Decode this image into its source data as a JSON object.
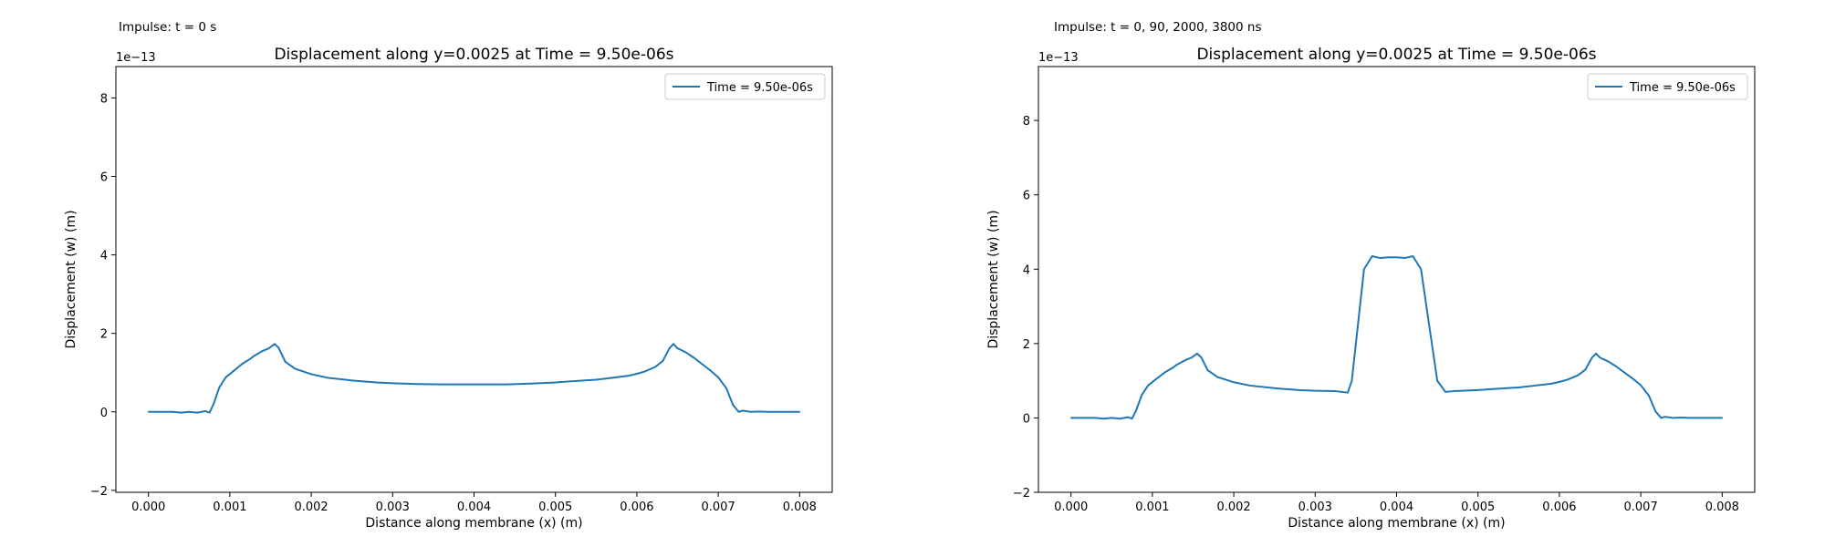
{
  "figure": {
    "left_caption": "Impulse: t = 0 s",
    "right_caption": "Impulse: t = 0, 90, 2000, 3800 ns"
  },
  "chart_data": [
    {
      "type": "line",
      "title": "Displacement along y=0.0025 at Time = 9.50e-06s",
      "xlabel": "Distance along membrane (x) (m)",
      "ylabel": "Displacement (w) (m)",
      "y_offset_text": "1e−13",
      "xlim": [
        -0.0004,
        0.0084
      ],
      "ylim": [
        -2.05,
        8.8
      ],
      "x_ticks": [
        0.0,
        0.001,
        0.002,
        0.003,
        0.004,
        0.005,
        0.006,
        0.007,
        0.008
      ],
      "x_tick_labels": [
        "0.000",
        "0.001",
        "0.002",
        "0.003",
        "0.004",
        "0.005",
        "0.006",
        "0.007",
        "0.008"
      ],
      "y_ticks": [
        -2,
        0,
        2,
        4,
        6,
        8
      ],
      "y_tick_labels": [
        "−2",
        "0",
        "2",
        "4",
        "6",
        "8"
      ],
      "grid": false,
      "legend_position": "top-right",
      "series": [
        {
          "name": "Time = 9.50e-06s",
          "color": "#1f77b4",
          "x": [
            0.0,
            0.0001,
            0.0002,
            0.0003,
            0.0004,
            0.0005,
            0.0006,
            0.0007,
            0.00075,
            0.0008,
            0.00087,
            0.00095,
            0.00105,
            0.00115,
            0.00125,
            0.0013,
            0.0014,
            0.00148,
            0.00155,
            0.0016,
            0.00168,
            0.0018,
            0.002,
            0.0022,
            0.0025,
            0.0028,
            0.003,
            0.0033,
            0.0036,
            0.004,
            0.0044,
            0.0047,
            0.005,
            0.0052,
            0.0055,
            0.0057,
            0.0059,
            0.006,
            0.0061,
            0.00623,
            0.00632,
            0.0064,
            0.00645,
            0.0065,
            0.0066,
            0.0067,
            0.0068,
            0.0069,
            0.007,
            0.0071,
            0.00718,
            0.00725,
            0.0073,
            0.0074,
            0.0075,
            0.0076,
            0.0077,
            0.0078,
            0.0079,
            0.008
          ],
          "y": [
            0.0,
            0.0,
            0.0,
            0.0,
            -0.02,
            0.0,
            -0.02,
            0.02,
            -0.02,
            0.2,
            0.62,
            0.88,
            1.05,
            1.22,
            1.35,
            1.43,
            1.55,
            1.62,
            1.73,
            1.63,
            1.28,
            1.1,
            0.96,
            0.87,
            0.8,
            0.75,
            0.73,
            0.71,
            0.7,
            0.7,
            0.7,
            0.72,
            0.75,
            0.78,
            0.82,
            0.87,
            0.92,
            0.97,
            1.03,
            1.15,
            1.3,
            1.62,
            1.73,
            1.62,
            1.52,
            1.38,
            1.22,
            1.06,
            0.88,
            0.6,
            0.18,
            0.0,
            0.03,
            0.0,
            0.01,
            0.0,
            0.0,
            0.0,
            0.0,
            0.0
          ]
        }
      ]
    },
    {
      "type": "line",
      "title": "Displacement along y=0.0025 at Time = 9.50e-06s",
      "xlabel": "Distance along membrane (x) (m)",
      "ylabel": "Displacement (w) (m)",
      "y_offset_text": "1e−13",
      "xlim": [
        -0.0004,
        0.0084
      ],
      "ylim": [
        -2.0,
        9.45
      ],
      "x_ticks": [
        0.0,
        0.001,
        0.002,
        0.003,
        0.004,
        0.005,
        0.006,
        0.007,
        0.008
      ],
      "x_tick_labels": [
        "0.000",
        "0.001",
        "0.002",
        "0.003",
        "0.004",
        "0.005",
        "0.006",
        "0.007",
        "0.008"
      ],
      "y_ticks": [
        -2,
        0,
        2,
        4,
        6,
        8
      ],
      "y_tick_labels": [
        "−2",
        "0",
        "2",
        "4",
        "6",
        "8"
      ],
      "grid": false,
      "legend_position": "top-right",
      "series": [
        {
          "name": "Time = 9.50e-06s",
          "color": "#1f77b4",
          "x": [
            0.0,
            0.0001,
            0.0002,
            0.0003,
            0.0004,
            0.0005,
            0.0006,
            0.0007,
            0.00075,
            0.0008,
            0.00087,
            0.00095,
            0.00105,
            0.00115,
            0.00125,
            0.0013,
            0.0014,
            0.00148,
            0.00155,
            0.0016,
            0.00168,
            0.0018,
            0.002,
            0.0022,
            0.0025,
            0.0028,
            0.003,
            0.00325,
            0.0034,
            0.00345,
            0.0035,
            0.0036,
            0.0037,
            0.0038,
            0.0039,
            0.004,
            0.0041,
            0.0042,
            0.0043,
            0.0044,
            0.0045,
            0.0046,
            0.0047,
            0.005,
            0.0052,
            0.0055,
            0.0057,
            0.0059,
            0.006,
            0.0061,
            0.00623,
            0.00632,
            0.0064,
            0.00645,
            0.0065,
            0.0066,
            0.0067,
            0.0068,
            0.0069,
            0.007,
            0.0071,
            0.00718,
            0.00725,
            0.0073,
            0.0074,
            0.0075,
            0.0076,
            0.0077,
            0.0078,
            0.0079,
            0.008
          ],
          "y": [
            0.0,
            0.0,
            0.0,
            0.0,
            -0.02,
            0.0,
            -0.02,
            0.02,
            -0.02,
            0.2,
            0.62,
            0.88,
            1.05,
            1.22,
            1.35,
            1.43,
            1.55,
            1.62,
            1.73,
            1.63,
            1.28,
            1.1,
            0.96,
            0.87,
            0.8,
            0.75,
            0.73,
            0.72,
            0.68,
            1.0,
            2.0,
            4.0,
            4.35,
            4.3,
            4.32,
            4.32,
            4.3,
            4.35,
            4.0,
            2.5,
            1.0,
            0.7,
            0.72,
            0.75,
            0.78,
            0.82,
            0.87,
            0.92,
            0.97,
            1.03,
            1.15,
            1.3,
            1.62,
            1.73,
            1.62,
            1.52,
            1.38,
            1.22,
            1.06,
            0.88,
            0.6,
            0.18,
            0.0,
            0.03,
            0.0,
            0.01,
            0.0,
            0.0,
            0.0,
            0.0,
            0.0
          ]
        }
      ]
    }
  ]
}
